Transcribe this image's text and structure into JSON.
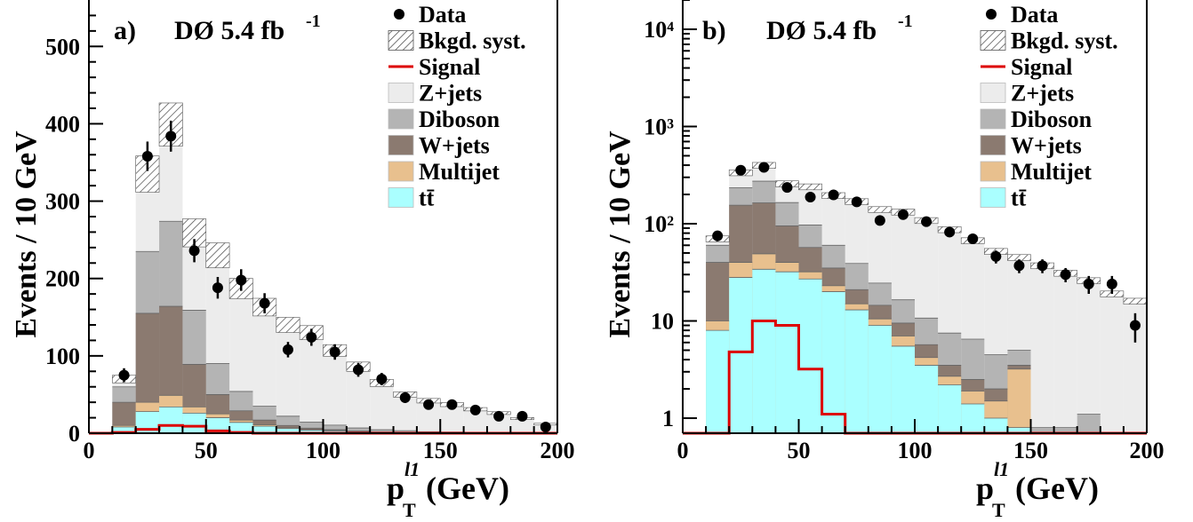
{
  "chart_data": [
    {
      "type": "bar",
      "panel_label": "a)",
      "experiment": "DØ 5.4 fb",
      "experiment_sup": "-1",
      "ylabel": "Events / 10 GeV",
      "xlabel": "p",
      "xlabel_sub": "T",
      "xlabel_sup": "l1",
      "xlabel_unit": "(GeV)",
      "xlim": [
        0,
        200
      ],
      "ylim": [
        0,
        560
      ],
      "yscale": "linear",
      "x_ticks": [
        "0",
        "50",
        "100",
        "150",
        "200"
      ],
      "y_ticks": [
        "0",
        "100",
        "200",
        "300",
        "400",
        "500"
      ],
      "bin_edges": [
        0,
        10,
        20,
        30,
        40,
        50,
        60,
        70,
        80,
        90,
        100,
        110,
        120,
        130,
        140,
        150,
        160,
        170,
        180,
        190,
        200
      ],
      "stack": [
        {
          "name": "tt̄",
          "color": "#aaffff",
          "values": [
            0,
            8,
            28,
            34,
            26,
            20,
            14,
            9,
            6,
            4,
            3,
            2,
            1,
            1,
            0.6,
            0.4,
            0.3,
            0.2,
            0.1,
            0.1
          ]
        },
        {
          "name": "Multijet",
          "color": "#e8c08e",
          "values": [
            0,
            2,
            12,
            15,
            8,
            5,
            3,
            2,
            1,
            0.5,
            0.5,
            0.3,
            0.2,
            0.1,
            0.3,
            0.1,
            0.1,
            0,
            0,
            0
          ]
        },
        {
          "name": "W+jets",
          "color": "#8b7a70",
          "values": [
            0,
            30,
            115,
            115,
            55,
            25,
            12,
            6,
            3,
            2,
            1,
            0.5,
            0.3,
            0.2,
            0.1,
            0.1,
            0,
            0,
            0,
            0
          ]
        },
        {
          "name": "Diboson",
          "color": "#b4b4b4",
          "values": [
            0,
            20,
            80,
            110,
            70,
            40,
            25,
            18,
            12,
            8,
            6,
            4,
            3,
            2,
            1,
            1,
            0.5,
            0.3,
            0.1,
            0.1
          ]
        },
        {
          "name": "Z+jets",
          "color": "#ececec",
          "values": [
            0,
            10,
            100,
            125,
            100,
            140,
            133,
            128,
            118,
            116,
            97,
            80,
            61,
            47,
            40,
            36,
            30,
            25,
            18,
            12
          ]
        }
      ],
      "bkgd_total": [
        0,
        70,
        335,
        399,
        259,
        230,
        187,
        163,
        140,
        130,
        107,
        86,
        65,
        50,
        42,
        37,
        31,
        26,
        19,
        12
      ],
      "bkgd_syst_band": 0.07,
      "signal": [
        0,
        1,
        5,
        10,
        9,
        3,
        1,
        0,
        0,
        0,
        0,
        0,
        0,
        0,
        0,
        0,
        0,
        0,
        0,
        0
      ],
      "data": {
        "x": [
          15,
          25,
          35,
          45,
          55,
          65,
          75,
          85,
          95,
          105,
          115,
          125,
          135,
          145,
          155,
          165,
          175,
          185,
          195
        ],
        "y": [
          75,
          358,
          384,
          236,
          188,
          198,
          168,
          108,
          124,
          105,
          82,
          70,
          46,
          37,
          37,
          30,
          22,
          22,
          8
        ],
        "err": [
          9,
          19,
          20,
          15,
          14,
          14,
          13,
          10,
          11,
          10,
          9,
          8,
          7,
          6,
          6,
          5,
          5,
          5,
          3
        ]
      },
      "legend": {
        "placement": "top-right",
        "entries": [
          "Data",
          "Bkgd. syst.",
          "Signal",
          "Z+jets",
          "Diboson",
          "W+jets",
          "Multijet",
          "tt̄"
        ]
      },
      "colors": {
        "signal": "#dd0000",
        "data": "#000000"
      }
    },
    {
      "type": "bar",
      "panel_label": "b)",
      "experiment": "DØ 5.4 fb",
      "experiment_sup": "-1",
      "ylabel": "Events / 10 GeV",
      "xlabel": "p",
      "xlabel_sub": "T",
      "xlabel_sup": "l1",
      "xlabel_unit": "(GeV)",
      "xlim": [
        0,
        200
      ],
      "ylim": [
        0.7,
        20000
      ],
      "yscale": "log",
      "x_ticks": [
        "0",
        "50",
        "100",
        "150",
        "200"
      ],
      "y_ticks": [
        "1",
        "10",
        "10²",
        "10³",
        "10⁴"
      ],
      "bin_edges": [
        0,
        10,
        20,
        30,
        40,
        50,
        60,
        70,
        80,
        90,
        100,
        110,
        120,
        130,
        140,
        150,
        160,
        170,
        180,
        190,
        200
      ],
      "stack": [
        {
          "name": "tt̄",
          "color": "#aaffff",
          "values": [
            0,
            8,
            28,
            34,
            32,
            27,
            20,
            13,
            9,
            5.5,
            3.5,
            2.2,
            1.4,
            1.0,
            0.8,
            0,
            0,
            0,
            0,
            0
          ]
        },
        {
          "name": "Multijet",
          "color": "#e8c08e",
          "values": [
            0,
            2,
            12,
            15,
            8,
            5,
            3,
            2,
            1.5,
            1.5,
            0.7,
            0.5,
            0.5,
            0.5,
            2.4,
            0,
            0,
            0,
            0,
            0
          ]
        },
        {
          "name": "W+jets",
          "color": "#8b7a70",
          "values": [
            0,
            30,
            115,
            115,
            55,
            25,
            12,
            6,
            4,
            2.5,
            1.5,
            0.8,
            0.6,
            0.5,
            0.3,
            0,
            0,
            0,
            0,
            0
          ]
        },
        {
          "name": "Diboson",
          "color": "#b4b4b4",
          "values": [
            0,
            20,
            80,
            110,
            70,
            40,
            25,
            18,
            10,
            7,
            5,
            4,
            4,
            2.5,
            1.5,
            0.8,
            0.8,
            1.1,
            0,
            0
          ]
        },
        {
          "name": "Z+jets",
          "color": "#ececec",
          "values": [
            0,
            10,
            100,
            125,
            93,
            143,
            135,
            130,
            116,
            116,
            97,
            80,
            61,
            47,
            40,
            36,
            30,
            25,
            18,
            16
          ]
        }
      ],
      "bkgd_total": [
        0,
        70,
        335,
        399,
        258,
        240,
        195,
        169,
        140,
        132,
        108,
        87,
        67,
        52,
        45,
        37,
        31,
        26,
        19,
        16
      ],
      "bkgd_syst_band": 0.07,
      "signal": [
        0,
        0.2,
        4.8,
        10,
        9,
        3.2,
        1.1,
        0,
        0,
        0,
        0,
        0,
        0,
        0,
        0,
        0,
        0,
        0,
        0,
        0
      ],
      "data": {
        "x": [
          15,
          25,
          35,
          45,
          55,
          65,
          75,
          85,
          95,
          105,
          115,
          125,
          135,
          145,
          155,
          165,
          175,
          185,
          195
        ],
        "y": [
          75,
          355,
          380,
          236,
          188,
          198,
          168,
          108,
          124,
          105,
          82,
          70,
          46,
          37,
          37,
          30,
          24,
          24,
          9
        ],
        "err": [
          9,
          19,
          20,
          15,
          14,
          14,
          13,
          10,
          11,
          10,
          9,
          8,
          7,
          6,
          6,
          5,
          5,
          5,
          3
        ]
      },
      "legend": {
        "placement": "top-right",
        "entries": [
          "Data",
          "Bkgd. syst.",
          "Signal",
          "Z+jets",
          "Diboson",
          "W+jets",
          "Multijet",
          "tt̄"
        ]
      },
      "colors": {
        "signal": "#dd0000",
        "data": "#000000"
      }
    }
  ]
}
